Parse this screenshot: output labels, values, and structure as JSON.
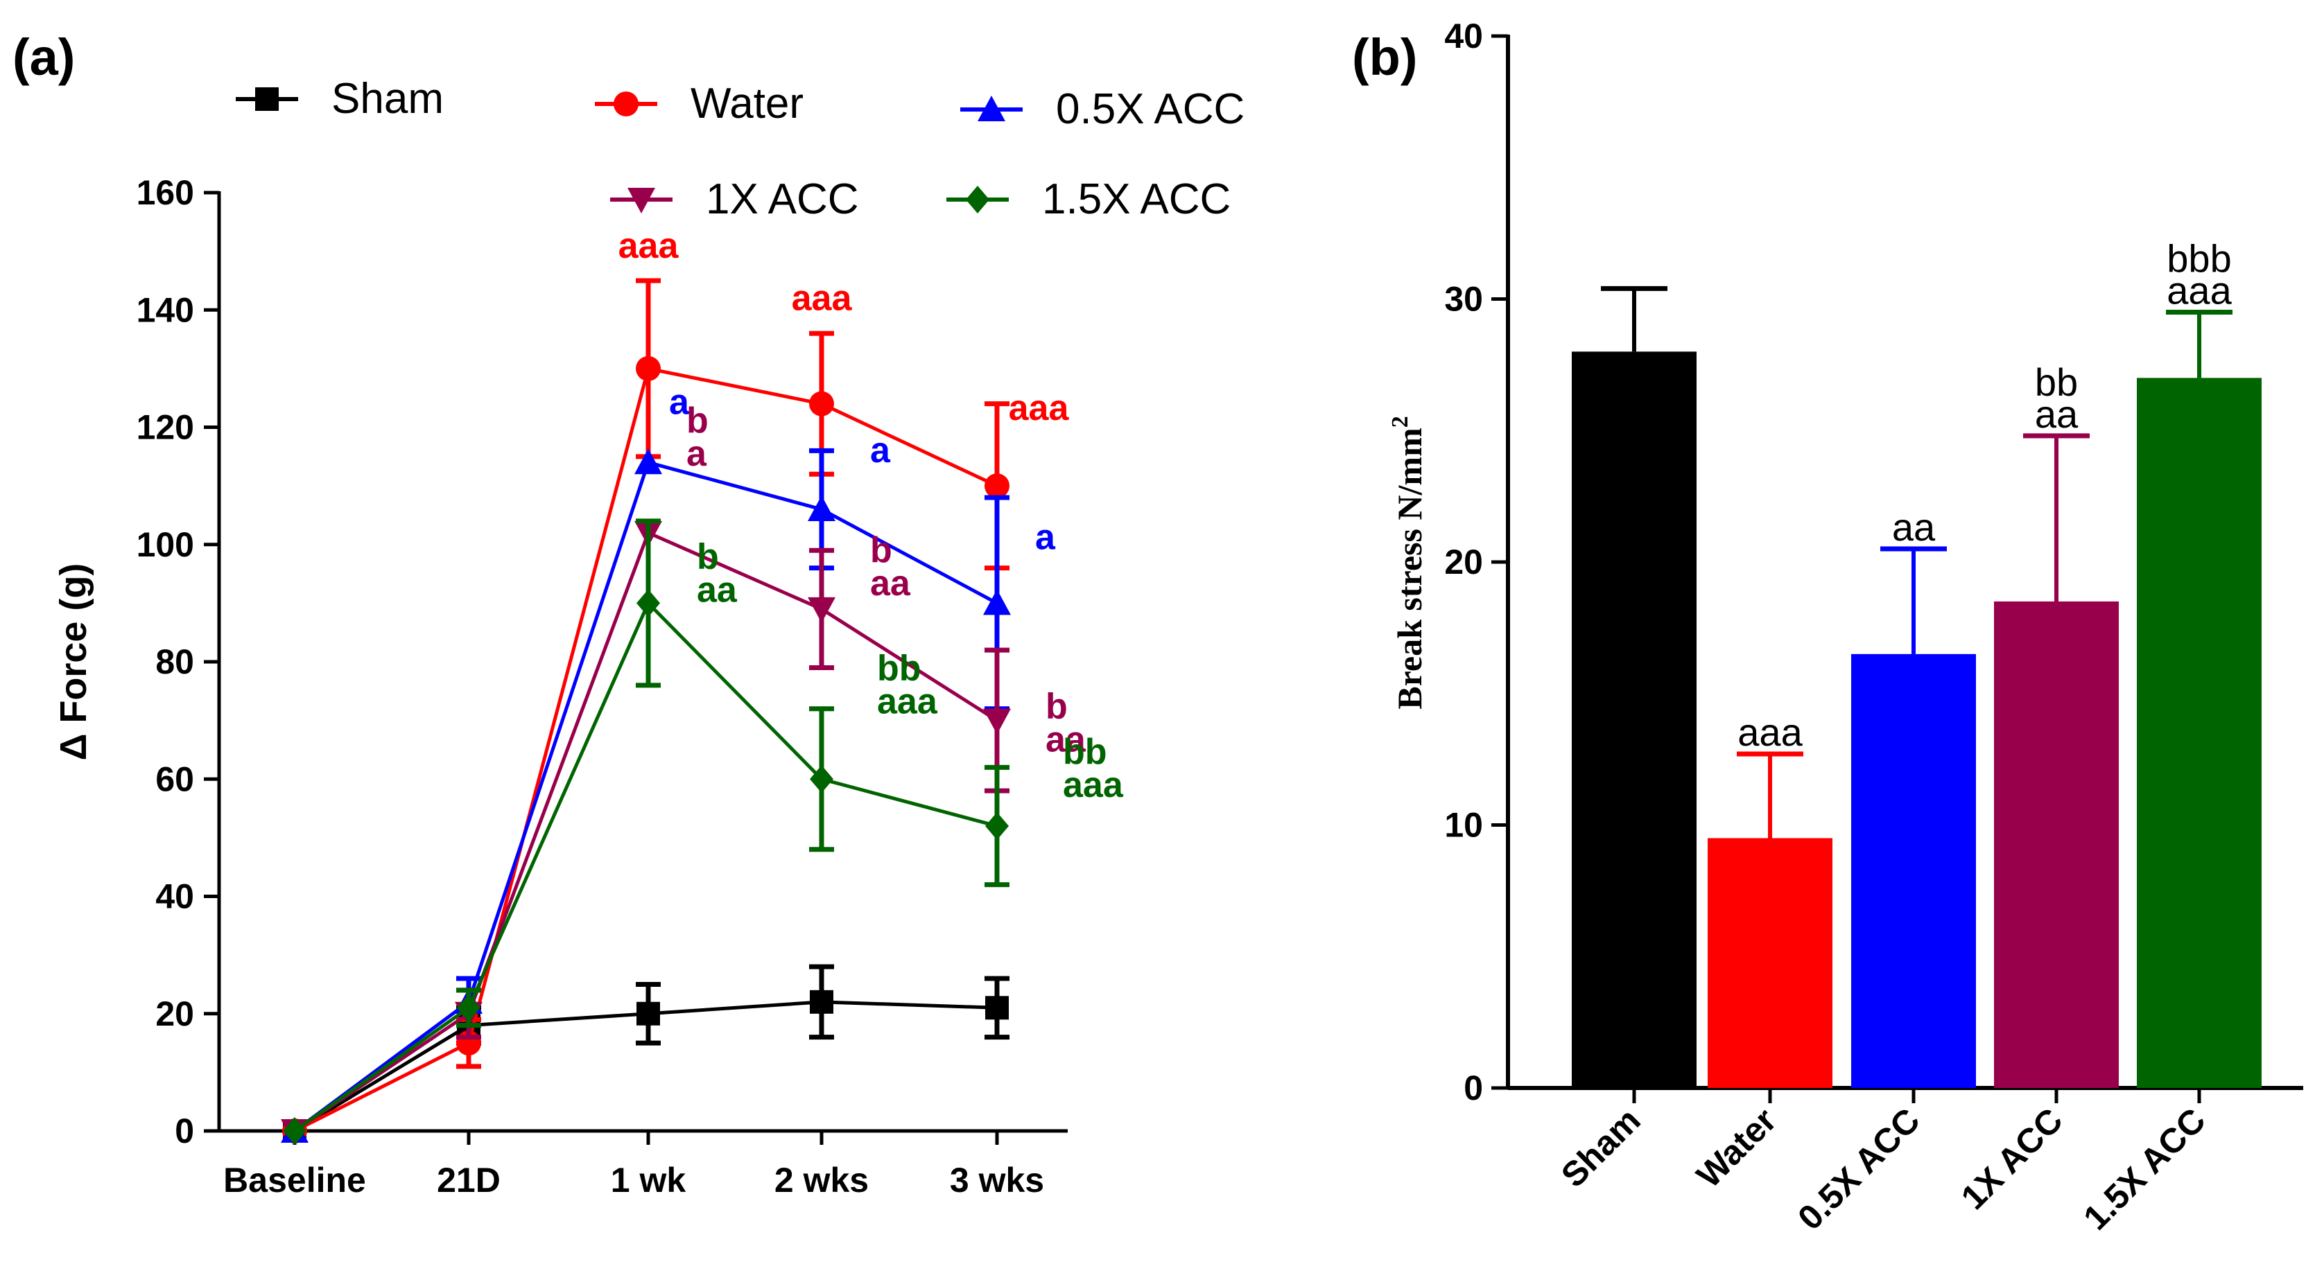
{
  "chart_data": [
    {
      "panel_label": "(a)",
      "type": "line",
      "ylabel": "Δ Force (g)",
      "xlabel": "",
      "categories": [
        "Baseline",
        "21D",
        "1 wk",
        "2 wks",
        "3 wks"
      ],
      "ylim": [
        0,
        160
      ],
      "yticks": [
        0,
        20,
        40,
        60,
        80,
        100,
        120,
        140,
        160
      ],
      "legend": "top",
      "series": [
        {
          "name": "Sham",
          "color": "#000000",
          "marker": "square",
          "values": [
            0,
            18,
            20,
            22,
            21
          ],
          "errors": [
            0,
            3,
            5,
            6,
            5
          ],
          "annotations": [
            null,
            null,
            null,
            null,
            null
          ]
        },
        {
          "name": "Water",
          "color": "#ff0000",
          "marker": "circle",
          "values": [
            0,
            15,
            130,
            124,
            110
          ],
          "errors": [
            0,
            4,
            15,
            12,
            14
          ],
          "annotations": [
            null,
            null,
            [
              "aaa"
            ],
            [
              "aaa"
            ],
            [
              "aaa"
            ]
          ]
        },
        {
          "name": "0.5X ACC",
          "color": "#0000ff",
          "marker": "triangle-up",
          "values": [
            0,
            22,
            114,
            106,
            90
          ],
          "errors": [
            0,
            4,
            0,
            10,
            18
          ],
          "annotations": [
            null,
            null,
            [
              "a"
            ],
            [
              "a"
            ],
            [
              "a"
            ]
          ]
        },
        {
          "name": "1X ACC",
          "color": "#99004c",
          "marker": "triangle-down",
          "values": [
            0,
            20,
            102,
            89,
            70
          ],
          "errors": [
            0,
            4,
            0,
            10,
            12
          ],
          "annotations": [
            null,
            null,
            [
              "b",
              "a"
            ],
            [
              "b",
              "aa"
            ],
            [
              "b",
              "aa"
            ]
          ]
        },
        {
          "name": "1.5X ACC",
          "color": "#006400",
          "marker": "diamond",
          "values": [
            0,
            21,
            90,
            60,
            52
          ],
          "errors": [
            0,
            3,
            14,
            12,
            10
          ],
          "annotations": [
            null,
            null,
            [
              "b",
              "aa"
            ],
            [
              "bb",
              "aaa"
            ],
            [
              "bb",
              "aaa"
            ]
          ]
        }
      ]
    },
    {
      "panel_label": "(b)",
      "type": "bar",
      "ylabel": "Break stress N/mm",
      "ylabel_superscript": "2",
      "xlabel": "",
      "categories": [
        "Sham",
        "Water",
        "0.5X ACC",
        "1X ACC",
        "1.5X ACC"
      ],
      "values": [
        28,
        9.5,
        16.5,
        18.5,
        27
      ],
      "errors_up": [
        2.4,
        3.2,
        4.0,
        6.3,
        2.5
      ],
      "errors_down": [
        0,
        0,
        0,
        6.2,
        0
      ],
      "colors": [
        "#000000",
        "#ff0000",
        "#0000ff",
        "#99004c",
        "#006400"
      ],
      "error_colors": [
        "#000000",
        "#ff0000",
        "#0000ff",
        "#99004c",
        "#006400"
      ],
      "annotations": [
        null,
        [
          "aaa"
        ],
        [
          "aa"
        ],
        [
          "bb",
          "aa"
        ],
        [
          "bbb",
          "aaa"
        ]
      ],
      "ylim": [
        0,
        40
      ],
      "yticks": [
        0,
        10,
        20,
        30,
        40
      ]
    }
  ]
}
